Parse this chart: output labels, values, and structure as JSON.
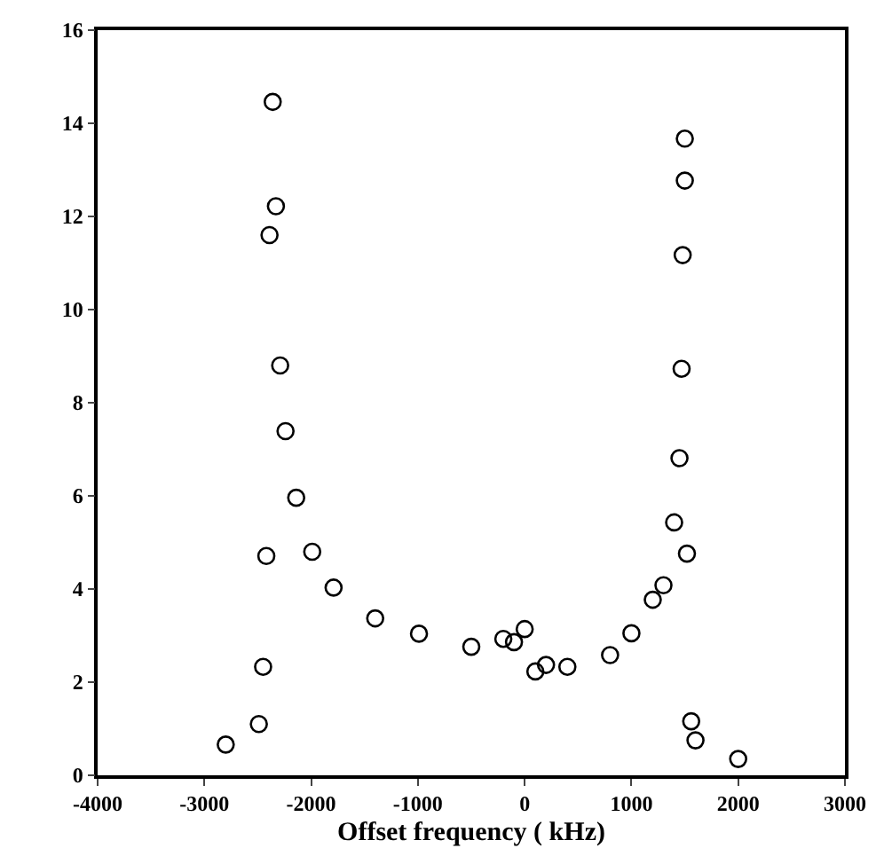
{
  "chart_data": {
    "type": "scatter",
    "xlabel": "Offset frequency ( kHz)",
    "marker": "circle",
    "x": [
      -2800,
      -2490,
      -2450,
      -2420,
      -2390,
      -2360,
      -2330,
      -2290,
      -2240,
      -2140,
      -1990,
      -1790,
      -1400,
      -990,
      -500,
      -200,
      -100,
      0,
      100,
      200,
      400,
      800,
      1000,
      1200,
      1300,
      1400,
      1450,
      1470,
      1480,
      1500,
      1500,
      1520,
      1560,
      1600,
      2000
    ],
    "series": [
      {
        "color": "#000000",
        "values": [
          0.66,
          1.1,
          2.33,
          4.71,
          11.6,
          14.46,
          12.22,
          8.8,
          7.39,
          5.96,
          4.8,
          4.03,
          3.37,
          3.04,
          2.76,
          2.93,
          2.86,
          3.14,
          2.23,
          2.37,
          2.33,
          2.58,
          3.05,
          3.77,
          4.08,
          5.43,
          6.81,
          8.73,
          11.17,
          12.77,
          13.67,
          4.76,
          1.16,
          0.75,
          0.35
        ]
      }
    ],
    "xlim": [
      -4000,
      3000
    ],
    "xticks": [
      -4000,
      -3000,
      -2000,
      -1000,
      0,
      1000,
      2000,
      3000
    ],
    "ylim": [
      0,
      16
    ],
    "yticks": [
      0,
      2,
      4,
      6,
      8,
      10,
      12,
      14,
      16
    ]
  }
}
